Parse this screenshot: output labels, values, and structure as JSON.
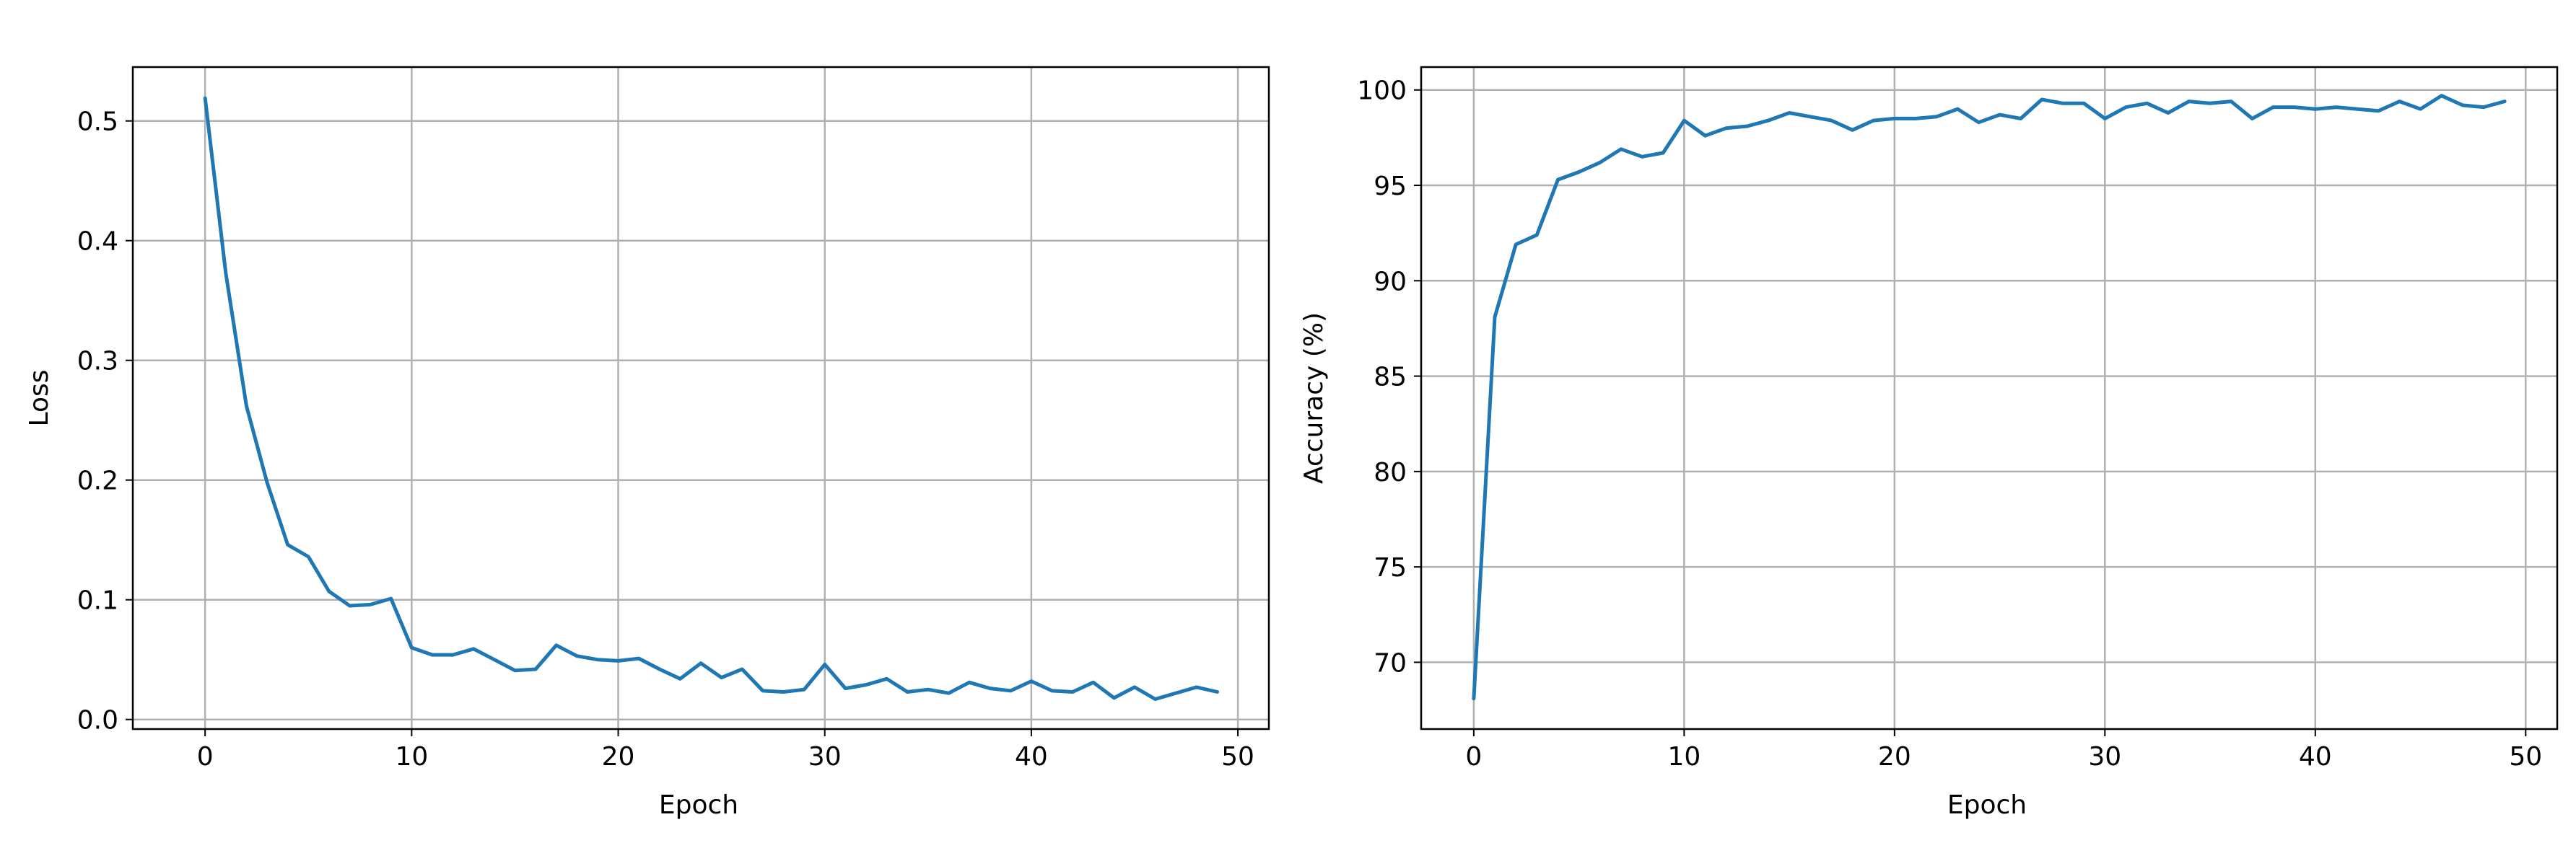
{
  "chart_data": [
    {
      "type": "line",
      "title": "",
      "xlabel": "Epoch",
      "ylabel": "Loss",
      "xlim": [
        -3.5,
        51.5
      ],
      "ylim": [
        -0.008,
        0.545
      ],
      "xticks": [
        0,
        10,
        20,
        30,
        40,
        50
      ],
      "yticks": [
        0.0,
        0.1,
        0.2,
        0.3,
        0.4,
        0.5
      ],
      "ytick_labels": [
        "0.0",
        "0.1",
        "0.2",
        "0.3",
        "0.4",
        "0.5"
      ],
      "grid": true,
      "line_color": "#1f77b4",
      "series": [
        {
          "x": [
            0,
            1,
            2,
            3,
            4,
            5,
            6,
            7,
            8,
            9,
            10,
            11,
            12,
            13,
            14,
            15,
            16,
            17,
            18,
            19,
            20,
            21,
            22,
            23,
            24,
            25,
            26,
            27,
            28,
            29,
            30,
            31,
            32,
            33,
            34,
            35,
            36,
            37,
            38,
            39,
            40,
            41,
            42,
            43,
            44,
            45,
            46,
            47,
            48,
            49
          ],
          "values": [
            0.519,
            0.373,
            0.262,
            0.198,
            0.146,
            0.136,
            0.107,
            0.095,
            0.096,
            0.101,
            0.06,
            0.054,
            0.054,
            0.059,
            0.05,
            0.041,
            0.042,
            0.062,
            0.053,
            0.05,
            0.049,
            0.051,
            0.042,
            0.034,
            0.047,
            0.035,
            0.042,
            0.024,
            0.023,
            0.025,
            0.046,
            0.026,
            0.029,
            0.034,
            0.023,
            0.025,
            0.022,
            0.031,
            0.026,
            0.024,
            0.032,
            0.024,
            0.023,
            0.031,
            0.018,
            0.027,
            0.017,
            0.022,
            0.027,
            0.023
          ]
        }
      ]
    },
    {
      "type": "line",
      "title": "",
      "xlabel": "Epoch",
      "ylabel": "Accuracy (%)",
      "xlim": [
        -2.5,
        51.5
      ],
      "ylim": [
        66.5,
        101.2
      ],
      "xticks": [
        0,
        10,
        20,
        30,
        40,
        50
      ],
      "yticks": [
        70,
        75,
        80,
        85,
        90,
        95,
        100
      ],
      "ytick_labels": [
        "70",
        "75",
        "80",
        "85",
        "90",
        "95",
        "100"
      ],
      "grid": true,
      "line_color": "#1f77b4",
      "series": [
        {
          "x": [
            0,
            1,
            2,
            3,
            4,
            5,
            6,
            7,
            8,
            9,
            10,
            11,
            12,
            13,
            14,
            15,
            16,
            17,
            18,
            19,
            20,
            21,
            22,
            23,
            24,
            25,
            26,
            27,
            28,
            29,
            30,
            31,
            32,
            33,
            34,
            35,
            36,
            37,
            38,
            39,
            40,
            41,
            42,
            43,
            44,
            45,
            46,
            47,
            48,
            49
          ],
          "values": [
            68.1,
            88.1,
            91.9,
            92.4,
            95.3,
            95.7,
            96.2,
            96.9,
            96.5,
            96.7,
            98.4,
            97.6,
            98.0,
            98.1,
            98.4,
            98.8,
            98.6,
            98.4,
            97.9,
            98.4,
            98.5,
            98.5,
            98.6,
            99.0,
            98.3,
            98.7,
            98.5,
            99.5,
            99.3,
            99.3,
            98.5,
            99.1,
            99.3,
            98.8,
            99.4,
            99.3,
            99.4,
            98.5,
            99.1,
            99.1,
            99.0,
            99.1,
            99.0,
            98.9,
            99.4,
            99.0,
            99.7,
            99.2,
            99.1,
            99.4
          ]
        }
      ]
    }
  ]
}
